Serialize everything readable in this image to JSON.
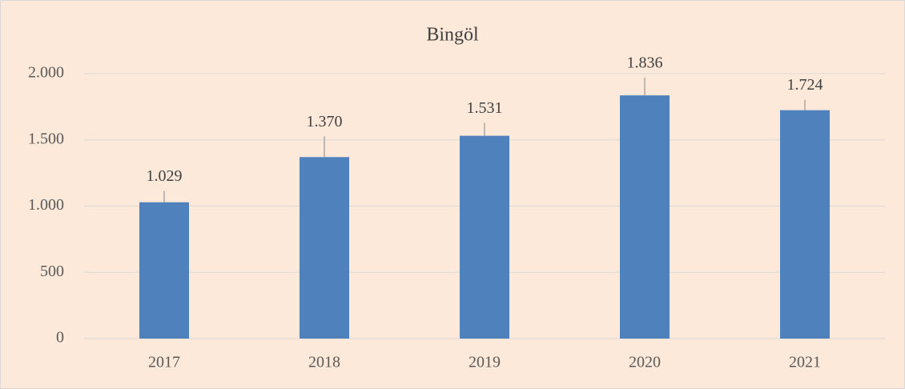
{
  "chart_data": {
    "type": "bar",
    "title": "Bingöl",
    "categories": [
      "2017",
      "2018",
      "2019",
      "2020",
      "2021"
    ],
    "values": [
      1029,
      1370,
      1531,
      1836,
      1724
    ],
    "value_labels": [
      "1.029",
      "1.370",
      "1.531",
      "1.836",
      "1.724"
    ],
    "errors": [
      85,
      157,
      97,
      133,
      79
    ],
    "color": "#4f81bd",
    "ylim": [
      0,
      2000
    ],
    "yticks": [
      0,
      500,
      {
        "value": 1000,
        "label": "1.000"
      },
      {
        "value": 1500,
        "label": "1.500"
      },
      {
        "value": 2000,
        "label": "2.000"
      }
    ],
    "grid": true
  }
}
